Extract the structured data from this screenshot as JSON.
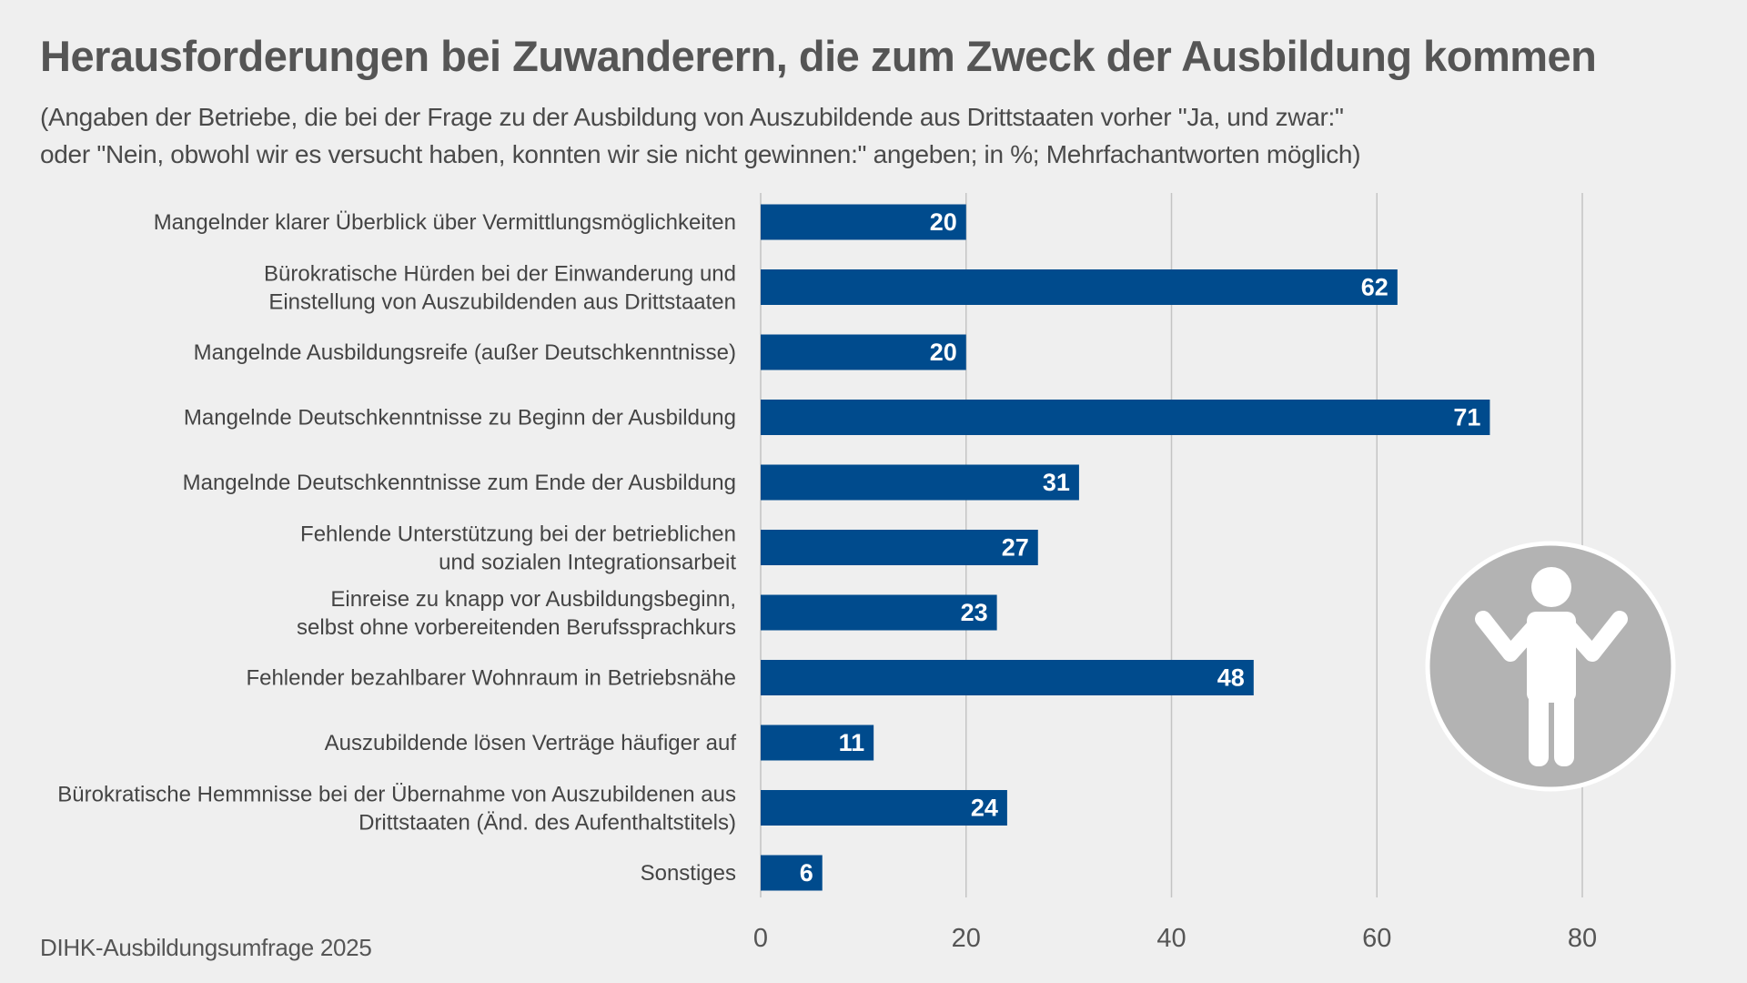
{
  "chart_data": {
    "type": "bar",
    "orientation": "horizontal",
    "title": "Herausforderungen bei Zuwanderern, die zum Zweck der Ausbildung kommen",
    "subtitle": [
      "(Angaben der Betriebe, die bei der Frage zu der Ausbildung von Auszubildende aus Drittstaaten vorher \"Ja, und zwar:\"",
      "oder \"Nein, obwohl wir es versucht haben, konnten wir sie nicht gewinnen:\" angeben; in %; Mehrfachantworten möglich)"
    ],
    "categories": [
      [
        "Mangelnder klarer Überblick über Vermittlungsmöglichkeiten"
      ],
      [
        "Bürokratische Hürden bei der Einwanderung und",
        "Einstellung von Auszubildenden aus Drittstaaten"
      ],
      [
        "Mangelnde Ausbildungsreife (außer Deutschkenntnisse)"
      ],
      [
        "Mangelnde Deutschkenntnisse zu Beginn der Ausbildung"
      ],
      [
        "Mangelnde Deutschkenntnisse zum Ende der Ausbildung"
      ],
      [
        "Fehlende Unterstützung bei der betrieblichen",
        "und sozialen Integrationsarbeit"
      ],
      [
        "Einreise zu knapp vor Ausbildungsbeginn,",
        "selbst ohne vorbereitenden Berufssprachkurs"
      ],
      [
        "Fehlender bezahlbarer Wohnraum in Betriebsnähe"
      ],
      [
        "Auszubildende lösen Verträge häufiger auf"
      ],
      [
        "Bürokratische Hemmnisse bei der Übernahme von Auszubildenen aus",
        "Drittstaaten (Änd. des Aufenthaltstitels)"
      ],
      [
        "Sonstiges"
      ]
    ],
    "values": [
      20,
      62,
      20,
      71,
      31,
      27,
      23,
      48,
      11,
      24,
      6
    ],
    "xlim": [
      0,
      80
    ],
    "xticks": [
      0,
      20,
      40,
      60,
      80
    ],
    "grid": true,
    "bar_color": "#004b8d",
    "source": "DIHK-Ausbildungsumfrage 2025",
    "icon": "person-shrugging-icon"
  }
}
